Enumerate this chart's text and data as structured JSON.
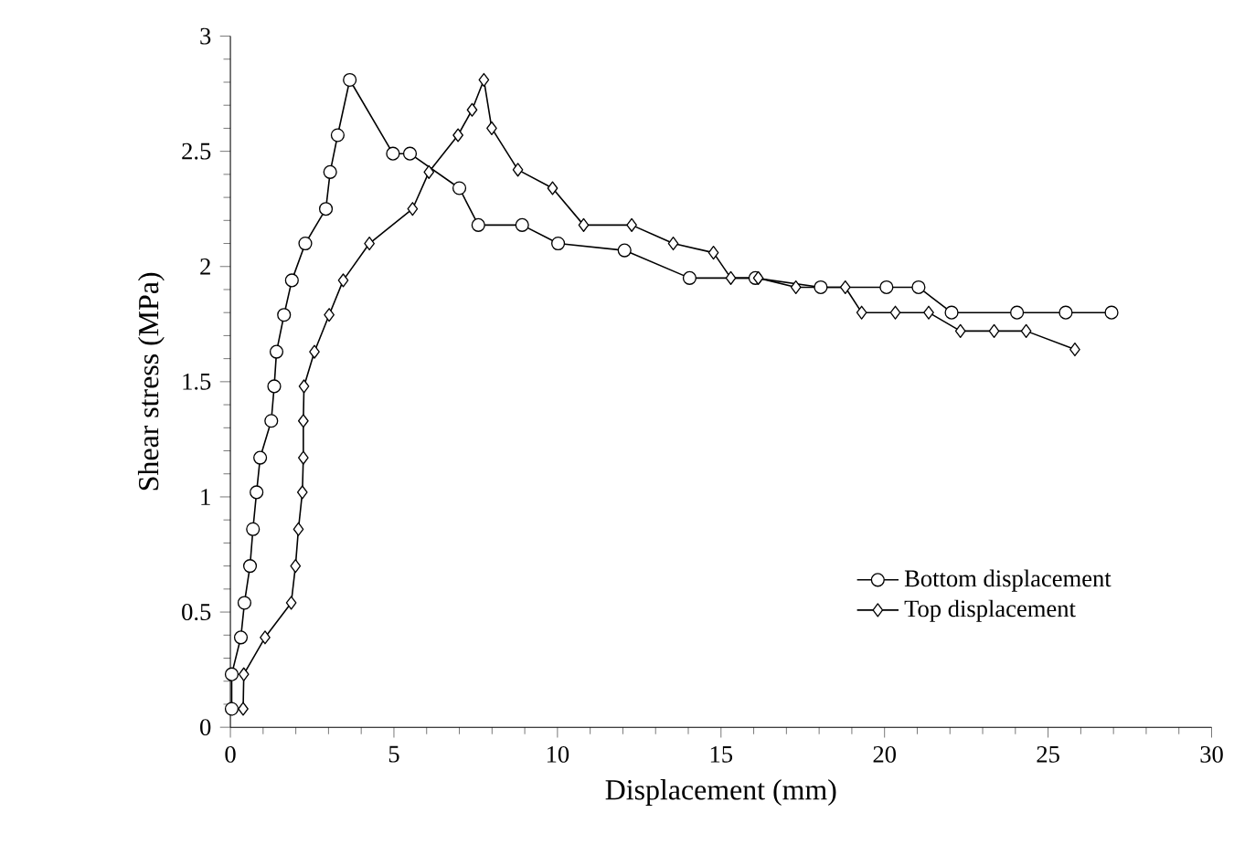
{
  "chart_data": {
    "type": "line",
    "xlabel": "Displacement (mm)",
    "ylabel": "Shear stress (MPa)",
    "xlim": [
      0,
      30
    ],
    "ylim": [
      0,
      3
    ],
    "xticks": [
      0,
      5,
      10,
      15,
      20,
      25,
      30
    ],
    "yticks": [
      0,
      0.5,
      1,
      1.5,
      2,
      2.5,
      3
    ],
    "grid": false,
    "legend": "bottom right",
    "line_style": "solid",
    "series": [
      {
        "name": "Bottom displacement",
        "color": "#000000",
        "marker": "circle",
        "x": [
          0.04,
          0.04,
          0.32,
          0.43,
          0.6,
          0.69,
          0.8,
          0.91,
          1.25,
          1.34,
          1.41,
          1.64,
          1.88,
          2.29,
          2.92,
          3.05,
          3.28,
          3.65,
          4.97,
          5.49,
          7.0,
          7.58,
          8.92,
          10.02,
          12.05,
          14.04,
          16.05,
          18.05,
          20.06,
          21.04,
          22.05,
          24.05,
          25.54,
          26.94
        ],
        "values": [
          0.08,
          0.23,
          0.39,
          0.54,
          0.7,
          0.86,
          1.02,
          1.17,
          1.33,
          1.48,
          1.63,
          1.79,
          1.94,
          2.1,
          2.25,
          2.41,
          2.57,
          2.81,
          2.49,
          2.49,
          2.34,
          2.18,
          2.18,
          2.1,
          2.07,
          1.95,
          1.95,
          1.91,
          1.91,
          1.91,
          1.8,
          1.8,
          1.8,
          1.8
        ]
      },
      {
        "name": "Top  displacement",
        "color": "#000000",
        "marker": "diamond",
        "x": [
          0.39,
          0.41,
          1.06,
          1.86,
          1.99,
          2.08,
          2.2,
          2.23,
          2.23,
          2.25,
          2.57,
          3.02,
          3.45,
          4.25,
          5.57,
          6.07,
          6.96,
          7.39,
          7.75,
          7.99,
          8.79,
          9.85,
          10.8,
          12.27,
          13.54,
          14.77,
          15.3,
          16.14,
          17.29,
          18.8,
          19.3,
          20.33,
          21.35,
          22.32,
          23.35,
          24.33,
          25.82
        ],
        "values": [
          0.08,
          0.23,
          0.39,
          0.54,
          0.7,
          0.86,
          1.02,
          1.17,
          1.33,
          1.48,
          1.63,
          1.79,
          1.94,
          2.1,
          2.25,
          2.41,
          2.57,
          2.68,
          2.81,
          2.6,
          2.42,
          2.34,
          2.18,
          2.18,
          2.1,
          2.06,
          1.95,
          1.95,
          1.91,
          1.91,
          1.8,
          1.8,
          1.8,
          1.72,
          1.72,
          1.72,
          1.64
        ]
      }
    ]
  }
}
